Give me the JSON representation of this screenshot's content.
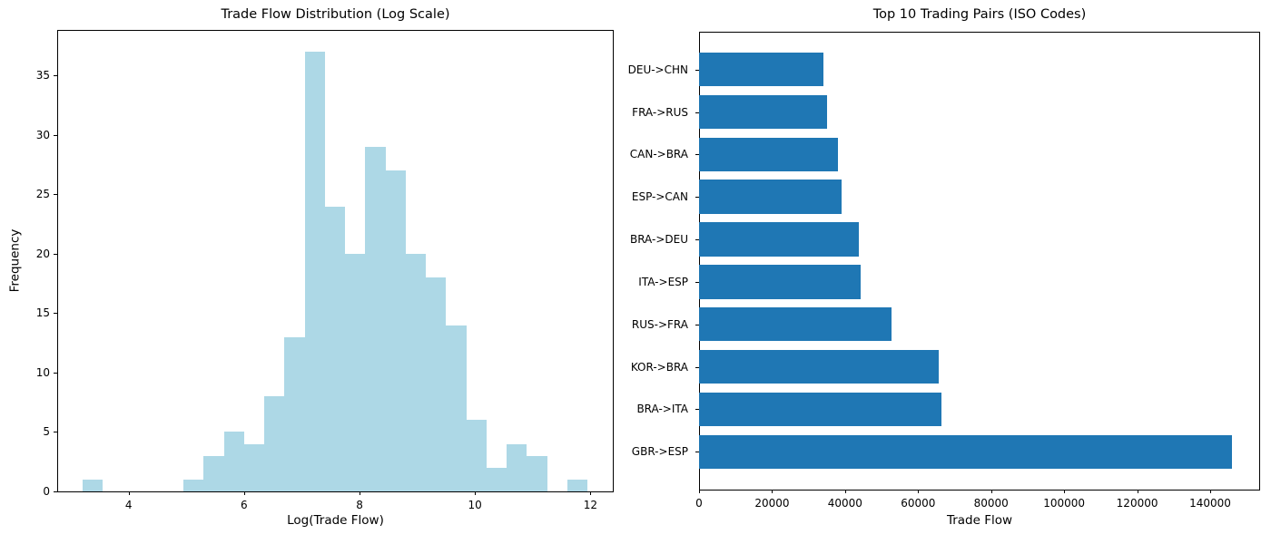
{
  "figure": {
    "background": "#ffffff",
    "text_color": "#000000"
  },
  "chart_data": [
    {
      "type": "bar",
      "subtype": "histogram",
      "title": "Trade Flow Distribution (Log Scale)",
      "xlabel": "Log(Trade Flow)",
      "ylabel": "Frequency",
      "bar_color": "#add8e6",
      "grid": false,
      "legend": false,
      "bin_start": 3.2,
      "bin_width": 0.35,
      "counts": [
        1,
        0,
        0,
        0,
        0,
        1,
        3,
        5,
        4,
        8,
        13,
        37,
        24,
        20,
        29,
        27,
        20,
        18,
        14,
        6,
        2,
        4,
        3,
        0,
        1
      ],
      "xlim": [
        2.7625,
        12.3875
      ],
      "ylim": [
        0,
        38.85
      ],
      "xticks": [
        4,
        6,
        8,
        10,
        12
      ],
      "yticks": [
        0,
        5,
        10,
        15,
        20,
        25,
        30,
        35
      ]
    },
    {
      "type": "bar",
      "orientation": "horizontal",
      "title": "Top 10 Trading Pairs (ISO Codes)",
      "xlabel": "Trade Flow",
      "ylabel": "",
      "bar_color": "#1f77b4",
      "grid": false,
      "legend": false,
      "categories": [
        "DEU->CHN",
        "FRA->RUS",
        "CAN->BRA",
        "ESP->CAN",
        "BRA->DEU",
        "ITA->ESP",
        "RUS->FRA",
        "KOR->BRA",
        "BRA->ITA",
        "GBR->ESP"
      ],
      "values": [
        34100,
        35100,
        38000,
        39000,
        43800,
        44300,
        52800,
        65700,
        66500,
        146000
      ],
      "xlim": [
        0,
        153300
      ],
      "xticks": [
        0,
        20000,
        40000,
        60000,
        80000,
        100000,
        120000,
        140000
      ]
    }
  ]
}
